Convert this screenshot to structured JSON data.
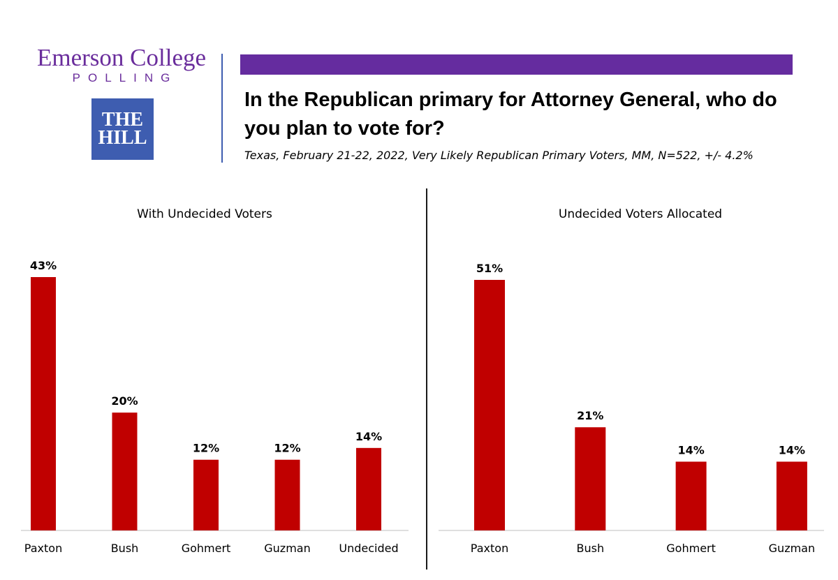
{
  "header": {
    "emerson_name": "Emerson College",
    "emerson_polling": "POLLING",
    "hill_line1": "THE",
    "hill_line2": "HILL",
    "title": "In the Republican primary for Attorney General, who do you plan to vote for?",
    "subtitle": "Texas, February 21-22, 2022, Very Likely Republican Primary Voters, MM, N=522, +/- 4.2%",
    "accent_color": "#652c9f",
    "hill_color": "#3e5db0"
  },
  "chart_data": [
    {
      "type": "bar",
      "title": "With Undecided Voters",
      "categories": [
        "Paxton",
        "Bush",
        "Gohmert",
        "Guzman",
        "Undecided"
      ],
      "values": [
        43,
        20,
        12,
        12,
        14
      ],
      "value_labels": [
        "43%",
        "20%",
        "12%",
        "12%",
        "14%"
      ],
      "ylim": [
        0,
        43
      ],
      "bar_color": "#c00000",
      "grid": false,
      "legend": "none"
    },
    {
      "type": "bar",
      "title": "Undecided Voters Allocated",
      "categories": [
        "Paxton",
        "Bush",
        "Gohmert",
        "Guzman"
      ],
      "values": [
        51,
        21,
        14,
        14
      ],
      "value_labels": [
        "51%",
        "21%",
        "14%",
        "14%"
      ],
      "ylim": [
        0,
        51
      ],
      "bar_color": "#c00000",
      "grid": false,
      "legend": "none"
    }
  ]
}
